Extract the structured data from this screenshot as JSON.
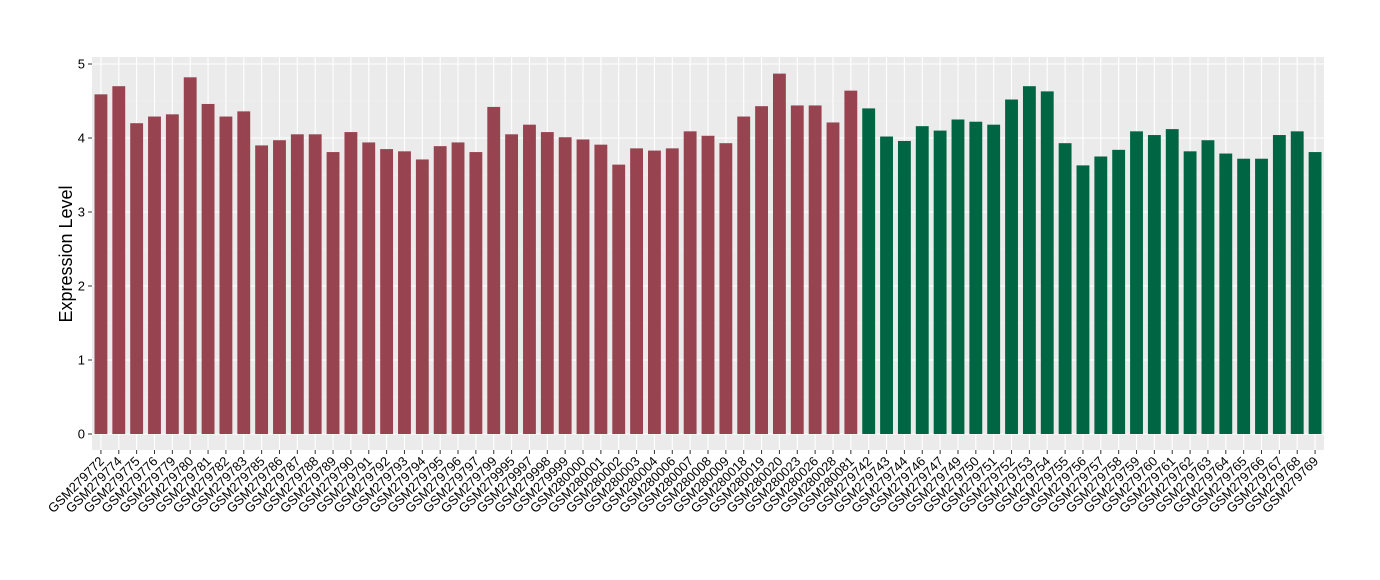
{
  "chart_data": {
    "type": "bar",
    "title": "",
    "xlabel": "",
    "ylabel": "Expression Level",
    "ylim": [
      0,
      5
    ],
    "yticks": [
      0,
      1,
      2,
      3,
      4,
      5
    ],
    "grid": true,
    "legend": "none",
    "background": "#ebebeb",
    "categories": [
      "GSM279772",
      "GSM279774",
      "GSM279775",
      "GSM279776",
      "GSM279779",
      "GSM279780",
      "GSM279781",
      "GSM279782",
      "GSM279783",
      "GSM279785",
      "GSM279786",
      "GSM279787",
      "GSM279788",
      "GSM279789",
      "GSM279790",
      "GSM279791",
      "GSM279792",
      "GSM279793",
      "GSM279794",
      "GSM279795",
      "GSM279796",
      "GSM279797",
      "GSM279799",
      "GSM279995",
      "GSM279997",
      "GSM279998",
      "GSM279999",
      "GSM280000",
      "GSM280001",
      "GSM280002",
      "GSM280003",
      "GSM280004",
      "GSM280006",
      "GSM280007",
      "GSM280008",
      "GSM280009",
      "GSM280018",
      "GSM280019",
      "GSM280020",
      "GSM280023",
      "GSM280026",
      "GSM280028",
      "GSM280081",
      "GSM279742",
      "GSM279743",
      "GSM279744",
      "GSM279746",
      "GSM279747",
      "GSM279749",
      "GSM279750",
      "GSM279751",
      "GSM279752",
      "GSM279753",
      "GSM279754",
      "GSM279755",
      "GSM279756",
      "GSM279757",
      "GSM279758",
      "GSM279759",
      "GSM279760",
      "GSM279761",
      "GSM279762",
      "GSM279763",
      "GSM279764",
      "GSM279765",
      "GSM279766",
      "GSM279767",
      "GSM279768",
      "GSM279769"
    ],
    "values": [
      4.59,
      4.7,
      4.2,
      4.29,
      4.32,
      4.82,
      4.46,
      4.29,
      4.36,
      3.9,
      3.97,
      4.05,
      4.05,
      3.81,
      4.08,
      3.94,
      3.85,
      3.82,
      3.71,
      3.89,
      3.94,
      3.81,
      4.42,
      4.05,
      4.18,
      4.08,
      4.01,
      3.98,
      3.91,
      3.64,
      3.86,
      3.83,
      3.86,
      4.09,
      4.03,
      3.93,
      4.29,
      4.43,
      4.87,
      4.44,
      4.44,
      4.21,
      4.64,
      4.4,
      4.02,
      3.96,
      4.16,
      4.1,
      4.25,
      4.22,
      4.18,
      4.52,
      4.7,
      4.63,
      3.93,
      3.63,
      3.75,
      3.84,
      4.09,
      4.04,
      4.12,
      3.82,
      3.97,
      3.79,
      3.72,
      3.72,
      4.04,
      4.09,
      3.81
    ],
    "group_colors": [
      "#984450",
      "#006543"
    ],
    "group_sizes": [
      43,
      26
    ]
  }
}
